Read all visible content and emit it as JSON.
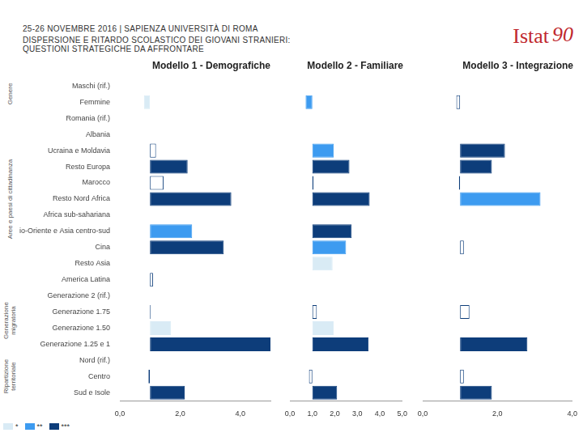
{
  "header": {
    "event": "25-26 NOVEMBRE 2016 | SAPIENZA UNIVERSITÀ DI ROMA",
    "title_lines": [
      "DISPERSIONE E RITARDO SCOLASTICO DEI GIOVANI STRANIERI:",
      "QUESTIONI STRATEGICHE DA AFFRONTARE"
    ],
    "logo": "Istat",
    "logo_badge": "90"
  },
  "groups": [
    {
      "label": "Genere",
      "categories": [
        "Maschi (rif.)",
        "Femmine"
      ]
    },
    {
      "label": "Aree e paesi di cittadinanza",
      "categories": [
        "Romania (rif.)",
        "Albania",
        "Ucraina e Moldavia",
        "Resto Europa",
        "Marocco",
        "Resto Nord Africa",
        "Africa sub-sahariana",
        "Medio-Oriente e Asia centro-sud",
        "Cina",
        "Resto Asia",
        "America Latina"
      ]
    },
    {
      "label": "Generazione migratoria",
      "categories": [
        "Generazione 2 (rif.)",
        "Generazione 1.75",
        "Generazione 1.50",
        "Generazione 1.25 e 1"
      ]
    },
    {
      "label": "Ripartizione territoriale",
      "categories": [
        "Nord (rif.)",
        "Centro",
        "Sud e Isole"
      ]
    }
  ],
  "legend_entries": [
    {
      "label": "*",
      "color": "#d9ebf5"
    },
    {
      "label": "**",
      "color": "#3d9bf0"
    },
    {
      "label": "***",
      "color": "#0d3d7a"
    }
  ],
  "chart_data": [
    {
      "type": "bar",
      "title": "Modello 1 - Demografiche",
      "orientation": "horizontal",
      "grid": false,
      "legend": "bottom",
      "categories": [
        "Maschi (rif.)",
        "Femmine",
        "Romania (rif.)",
        "Albania",
        "Ucraina e Moldavia",
        "Resto Europa",
        "Marocco",
        "Resto Nord Africa",
        "Africa sub-sahariana",
        "Medio-Oriente e Asia centro-sud",
        "Cina",
        "Resto Asia",
        "America Latina",
        "Generazione 2 (rif.)",
        "Generazione 1.75",
        "Generazione 1.50",
        "Generazione 1.25 e 1",
        "Nord (rif.)",
        "Centro",
        "Sud e Isole"
      ],
      "base": 1,
      "values": [
        null,
        0.8,
        null,
        null,
        1.2,
        2.25,
        1.45,
        3.7,
        null,
        2.4,
        3.45,
        null,
        1.1,
        null,
        1.02,
        1.7,
        5.0,
        null,
        0.95,
        2.15
      ],
      "colors": [
        null,
        "#d9ebf5",
        null,
        null,
        "#ffffff",
        "#0d3d7a",
        "#ffffff",
        "#0d3d7a",
        null,
        "#3d9bf0",
        "#0d3d7a",
        null,
        "#ffffff",
        null,
        "#ffffff",
        "#d9ebf5",
        "#0d3d7a",
        null,
        "#ffffff",
        "#0d3d7a"
      ],
      "xlim": [
        0,
        5
      ],
      "xticks": [
        {
          "value": 0,
          "label": "0,0"
        },
        {
          "value": 2,
          "label": "2,0"
        },
        {
          "value": 4,
          "label": "4,0"
        }
      ]
    },
    {
      "type": "bar",
      "title": "Modello 2 - Familiare",
      "orientation": "horizontal",
      "grid": false,
      "tick_labels": "x",
      "categories": [
        "Maschi (rif.)",
        "Femmine",
        "Romania (rif.)",
        "Albania",
        "Ucraina e Moldavia",
        "Resto Europa",
        "Marocco",
        "Resto Nord Africa",
        "Africa sub-sahariana",
        "Medio-Oriente e Asia centro-sud",
        "Cina",
        "Resto Asia",
        "America Latina",
        "Generazione 2 (rif.)",
        "Generazione 1.75",
        "Generazione 1.50",
        "Generazione 1.25 e 1",
        "Nord (rif.)",
        "Centro",
        "Sud e Isole"
      ],
      "base": 1,
      "values": [
        null,
        0.7,
        null,
        null,
        1.95,
        2.65,
        1.05,
        3.55,
        null,
        2.75,
        2.5,
        1.9,
        null,
        null,
        1.2,
        1.95,
        3.5,
        null,
        0.85,
        2.1
      ],
      "colors": [
        null,
        "#3d9bf0",
        null,
        null,
        "#3d9bf0",
        "#0d3d7a",
        "#ffffff",
        "#0d3d7a",
        null,
        "#0d3d7a",
        "#3d9bf0",
        "#d9ebf5",
        null,
        null,
        "#ffffff",
        "#d9ebf5",
        "#0d3d7a",
        null,
        "#ffffff",
        "#0d3d7a"
      ],
      "xlim": [
        0,
        5
      ],
      "xticks": [
        {
          "value": 0,
          "label": "0,0"
        },
        {
          "value": 1,
          "label": "1,0"
        },
        {
          "value": 2,
          "label": "2,0"
        },
        {
          "value": 3,
          "label": "3,0"
        },
        {
          "value": 4,
          "label": "4,0"
        },
        {
          "value": 5,
          "label": "5,0"
        }
      ]
    },
    {
      "type": "bar",
      "title": "Modello 3 - Integrazione",
      "orientation": "horizontal",
      "grid": false,
      "tick_labels": "x",
      "categories": [
        "Maschi (rif.)",
        "Femmine",
        "Romania (rif.)",
        "Albania",
        "Ucraina e Moldavia",
        "Resto Europa",
        "Marocco",
        "Resto Nord Africa",
        "Africa sub-sahariana",
        "Medio-Oriente e Asia centro-sud",
        "Cina",
        "Resto Asia",
        "America Latina",
        "Generazione 2 (rif.)",
        "Generazione 1.75",
        "Generazione 1.50",
        "Generazione 1.25 e 1",
        "Nord (rif.)",
        "Centro",
        "Sud e Isole"
      ],
      "base": 1,
      "values": [
        null,
        0.9,
        null,
        null,
        2.2,
        1.85,
        0.97,
        3.15,
        null,
        null,
        1.1,
        null,
        null,
        null,
        1.25,
        null,
        2.8,
        null,
        1.1,
        1.85
      ],
      "colors": [
        null,
        "#ffffff",
        null,
        null,
        "#0d3d7a",
        "#0d3d7a",
        "#ffffff",
        "#3d9bf0",
        null,
        null,
        "#ffffff",
        null,
        null,
        null,
        "#ffffff",
        null,
        "#0d3d7a",
        null,
        "#ffffff",
        "#0d3d7a"
      ],
      "xlim": [
        0,
        4
      ],
      "xticks": [
        {
          "value": 0,
          "label": "0,0"
        },
        {
          "value": 2,
          "label": "2,0"
        },
        {
          "value": 4,
          "label": "4,0"
        }
      ]
    }
  ]
}
